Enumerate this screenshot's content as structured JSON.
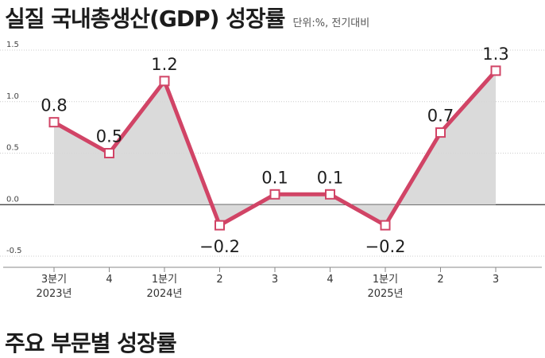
{
  "title": "실질 국내총생산(GDP) 성장률",
  "unit": "단위:%, 전기대비",
  "section2_title": "주요 부문별 성장률",
  "colors": {
    "line": "#d14466",
    "area": "#d6d6d6",
    "area_negative": "#c8c8c8",
    "grid": "#cccccc",
    "axis": "#333333"
  },
  "chart_data": {
    "type": "area",
    "categories": [
      [
        "3분기",
        "2023년"
      ],
      [
        "4",
        ""
      ],
      [
        "1분기",
        "2024년"
      ],
      [
        "2",
        ""
      ],
      [
        "3",
        ""
      ],
      [
        "4",
        ""
      ],
      [
        "1분기",
        "2025년"
      ],
      [
        "2",
        ""
      ],
      [
        "3",
        ""
      ]
    ],
    "values": [
      0.8,
      0.5,
      1.2,
      -0.2,
      0.1,
      0.1,
      -0.2,
      0.7,
      1.3
    ],
    "value_labels": [
      "0.8",
      "0.5",
      "1.2",
      "−0.2",
      "0.1",
      "0.1",
      "−0.2",
      "0.7",
      "1.3"
    ],
    "yticks": [
      "1.5",
      "1.0",
      "0.5",
      "0.0",
      "-0.5"
    ],
    "ytick_values": [
      1.5,
      1.0,
      0.5,
      0.0,
      -0.5
    ],
    "ylim": [
      -0.5,
      1.5
    ],
    "grid": true
  }
}
